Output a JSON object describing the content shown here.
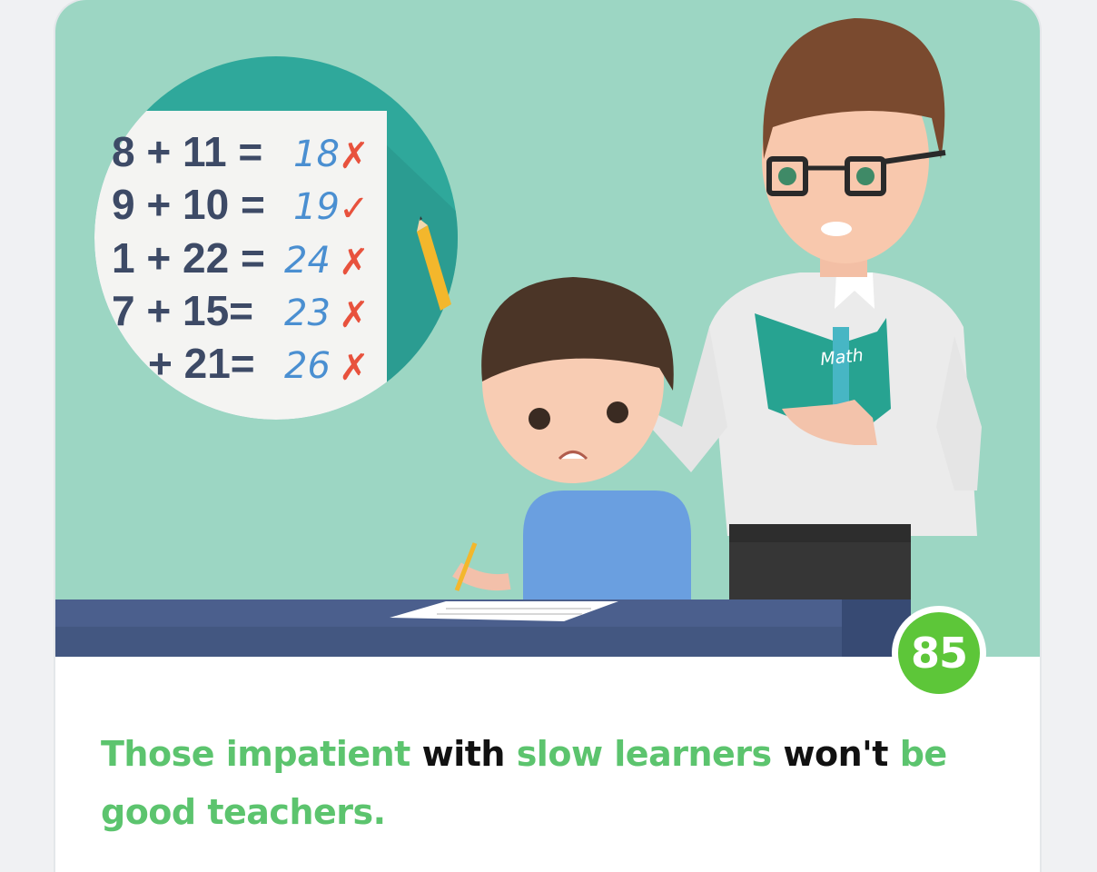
{
  "scene": {
    "book_title": "Math",
    "worksheet": [
      {
        "equation": "8 + 11 =",
        "answer": "18",
        "mark": "✗"
      },
      {
        "equation": "9 + 10 =",
        "answer": "19",
        "mark": "✓"
      },
      {
        "equation": "1 + 22 =",
        "answer": "24",
        "mark": "✗"
      },
      {
        "equation": "7 + 15=",
        "answer": "23",
        "mark": "✗"
      },
      {
        "equation": "+ 21=",
        "answer": "26",
        "mark": "✗"
      }
    ]
  },
  "score": {
    "value": "85",
    "color": "#5dc639"
  },
  "caption": {
    "parts": [
      "Those impatient",
      "with",
      "slow learners",
      "won't",
      "be good teachers."
    ]
  },
  "colors": {
    "highlight": "#5cc46e",
    "plain": "#111111",
    "wall": "#9cd6c3",
    "desk": "#435781"
  }
}
